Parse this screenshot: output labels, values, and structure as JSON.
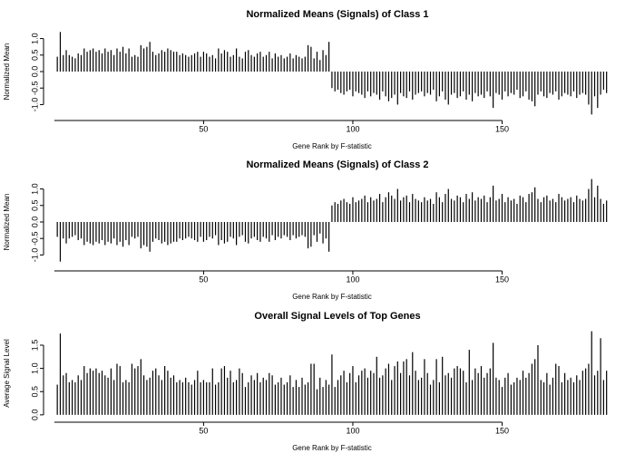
{
  "chart_data": [
    {
      "type": "needle",
      "title": "Normalized Means (Signals) of Class 1",
      "x_label": "Gene Rank by F-statistic",
      "y_label": "Normalized Mean",
      "color": "#000000",
      "xlim": [
        -3,
        193
      ],
      "xticks": [
        50,
        100,
        150
      ],
      "ylim": [
        -1.4,
        1.4
      ],
      "yticks": [
        {
          "value": -1,
          "label": "-1.0"
        },
        {
          "value": -0.5,
          "label": "-0.5"
        },
        {
          "value": 0,
          "label": "0.0"
        },
        {
          "value": 0.5,
          "label": "0.5"
        },
        {
          "value": 1,
          "label": "1.0"
        }
      ],
      "x": [
        1,
        2,
        3,
        4,
        5,
        6,
        7,
        8,
        9,
        10,
        11,
        12,
        13,
        14,
        15,
        16,
        17,
        18,
        19,
        20,
        21,
        22,
        23,
        24,
        25,
        26,
        27,
        28,
        29,
        30,
        31,
        32,
        33,
        34,
        35,
        36,
        37,
        38,
        39,
        40,
        41,
        42,
        43,
        44,
        45,
        46,
        47,
        48,
        49,
        50,
        51,
        52,
        53,
        54,
        55,
        56,
        57,
        58,
        59,
        60,
        61,
        62,
        63,
        64,
        65,
        66,
        67,
        68,
        69,
        70,
        71,
        72,
        73,
        74,
        75,
        76,
        77,
        78,
        79,
        80,
        81,
        82,
        83,
        84,
        85,
        86,
        87,
        88,
        89,
        90,
        91,
        92,
        93,
        94,
        95,
        96,
        97,
        98,
        99,
        100,
        101,
        102,
        103,
        104,
        105,
        106,
        107,
        108,
        109,
        110,
        111,
        112,
        113,
        114,
        115,
        116,
        117,
        118,
        119,
        120,
        121,
        122,
        123,
        124,
        125,
        126,
        127,
        128,
        129,
        130,
        131,
        132,
        133,
        134,
        135,
        136,
        137,
        138,
        139,
        140,
        141,
        142,
        143,
        144,
        145,
        146,
        147,
        148,
        149,
        150,
        151,
        152,
        153,
        154,
        155,
        156,
        157,
        158,
        159,
        160,
        161,
        162,
        163,
        164,
        165,
        166,
        167,
        168,
        169,
        170,
        171,
        172,
        173,
        174,
        175,
        176,
        177,
        178,
        179,
        180,
        181,
        182,
        183,
        184,
        185
      ],
      "values": [
        0.45,
        1.2,
        0.5,
        0.65,
        0.5,
        0.45,
        0.4,
        0.55,
        0.5,
        0.7,
        0.6,
        0.65,
        0.7,
        0.6,
        0.65,
        0.55,
        0.7,
        0.6,
        0.65,
        0.5,
        0.7,
        0.6,
        0.75,
        0.55,
        0.7,
        0.45,
        0.5,
        0.45,
        0.8,
        0.7,
        0.75,
        0.9,
        0.6,
        0.5,
        0.55,
        0.65,
        0.6,
        0.7,
        0.65,
        0.6,
        0.6,
        0.5,
        0.55,
        0.5,
        0.45,
        0.5,
        0.55,
        0.6,
        0.45,
        0.6,
        0.55,
        0.45,
        0.5,
        0.4,
        0.7,
        0.55,
        0.65,
        0.6,
        0.45,
        0.5,
        0.7,
        0.45,
        0.4,
        0.6,
        0.65,
        0.5,
        0.45,
        0.55,
        0.6,
        0.45,
        0.5,
        0.6,
        0.4,
        0.55,
        0.45,
        0.5,
        0.4,
        0.45,
        0.55,
        0.4,
        0.5,
        0.45,
        0.4,
        0.45,
        0.8,
        0.75,
        0.4,
        0.6,
        0.35,
        0.65,
        0.5,
        0.9,
        -0.5,
        -0.6,
        -0.55,
        -0.65,
        -0.7,
        -0.6,
        -0.55,
        -0.75,
        -0.6,
        -0.65,
        -0.7,
        -0.8,
        -0.6,
        -0.75,
        -0.65,
        -0.7,
        -0.85,
        -0.6,
        -0.75,
        -0.9,
        -0.8,
        -0.7,
        -1.0,
        -0.65,
        -0.75,
        -0.8,
        -0.6,
        -0.85,
        -0.7,
        -0.65,
        -0.6,
        -0.75,
        -0.65,
        -0.7,
        -0.55,
        -0.9,
        -0.75,
        -0.6,
        -0.85,
        -1.0,
        -0.7,
        -0.65,
        -0.8,
        -0.75,
        -0.6,
        -0.85,
        -0.7,
        -0.9,
        -0.65,
        -0.75,
        -0.7,
        -0.8,
        -0.6,
        -0.75,
        -1.1,
        -0.65,
        -0.7,
        -0.85,
        -0.6,
        -0.75,
        -0.65,
        -0.7,
        -0.55,
        -0.8,
        -0.75,
        -0.6,
        -0.85,
        -0.9,
        -1.05,
        -0.7,
        -0.6,
        -0.75,
        -0.8,
        -0.65,
        -0.7,
        -0.6,
        -0.85,
        -0.75,
        -0.65,
        -0.7,
        -0.75,
        -0.6,
        -0.8,
        -0.7,
        -0.65,
        -0.7,
        -1.0,
        -1.3,
        -0.75,
        -1.1,
        -0.7,
        -0.55,
        -0.65
      ]
    },
    {
      "type": "needle",
      "title": "Normalized Means (Signals) of Class 2",
      "x_label": "Gene Rank by F-statistic",
      "y_label": "Normalized Mean",
      "color": "#000000",
      "xlim": [
        -3,
        193
      ],
      "xticks": [
        50,
        100,
        150
      ],
      "ylim": [
        -1.4,
        1.4
      ],
      "yticks": [
        {
          "value": -1,
          "label": "-1.0"
        },
        {
          "value": -0.5,
          "label": "-0.5"
        },
        {
          "value": 0,
          "label": "0.0"
        },
        {
          "value": 0.5,
          "label": "0.5"
        },
        {
          "value": 1,
          "label": "1.0"
        }
      ],
      "x": [
        1,
        2,
        3,
        4,
        5,
        6,
        7,
        8,
        9,
        10,
        11,
        12,
        13,
        14,
        15,
        16,
        17,
        18,
        19,
        20,
        21,
        22,
        23,
        24,
        25,
        26,
        27,
        28,
        29,
        30,
        31,
        32,
        33,
        34,
        35,
        36,
        37,
        38,
        39,
        40,
        41,
        42,
        43,
        44,
        45,
        46,
        47,
        48,
        49,
        50,
        51,
        52,
        53,
        54,
        55,
        56,
        57,
        58,
        59,
        60,
        61,
        62,
        63,
        64,
        65,
        66,
        67,
        68,
        69,
        70,
        71,
        72,
        73,
        74,
        75,
        76,
        77,
        78,
        79,
        80,
        81,
        82,
        83,
        84,
        85,
        86,
        87,
        88,
        89,
        90,
        91,
        92,
        93,
        94,
        95,
        96,
        97,
        98,
        99,
        100,
        101,
        102,
        103,
        104,
        105,
        106,
        107,
        108,
        109,
        110,
        111,
        112,
        113,
        114,
        115,
        116,
        117,
        118,
        119,
        120,
        121,
        122,
        123,
        124,
        125,
        126,
        127,
        128,
        129,
        130,
        131,
        132,
        133,
        134,
        135,
        136,
        137,
        138,
        139,
        140,
        141,
        142,
        143,
        144,
        145,
        146,
        147,
        148,
        149,
        150,
        151,
        152,
        153,
        154,
        155,
        156,
        157,
        158,
        159,
        160,
        161,
        162,
        163,
        164,
        165,
        166,
        167,
        168,
        169,
        170,
        171,
        172,
        173,
        174,
        175,
        176,
        177,
        178,
        179,
        180,
        181,
        182,
        183,
        184,
        185
      ],
      "values": [
        -0.45,
        -1.2,
        -0.5,
        -0.65,
        -0.5,
        -0.45,
        -0.4,
        -0.55,
        -0.5,
        -0.7,
        -0.6,
        -0.65,
        -0.7,
        -0.6,
        -0.65,
        -0.55,
        -0.7,
        -0.6,
        -0.65,
        -0.5,
        -0.7,
        -0.6,
        -0.75,
        -0.55,
        -0.7,
        -0.45,
        -0.5,
        -0.45,
        -0.8,
        -0.7,
        -0.75,
        -0.9,
        -0.6,
        -0.5,
        -0.55,
        -0.65,
        -0.6,
        -0.7,
        -0.65,
        -0.6,
        -0.6,
        -0.5,
        -0.55,
        -0.5,
        -0.45,
        -0.5,
        -0.55,
        -0.6,
        -0.45,
        -0.6,
        -0.55,
        -0.45,
        -0.5,
        -0.4,
        -0.7,
        -0.55,
        -0.65,
        -0.6,
        -0.45,
        -0.5,
        -0.7,
        -0.45,
        -0.4,
        -0.6,
        -0.65,
        -0.5,
        -0.45,
        -0.55,
        -0.6,
        -0.45,
        -0.5,
        -0.6,
        -0.4,
        -0.55,
        -0.45,
        -0.5,
        -0.4,
        -0.45,
        -0.55,
        -0.4,
        -0.5,
        -0.45,
        -0.4,
        -0.45,
        -0.8,
        -0.75,
        -0.4,
        -0.6,
        -0.35,
        -0.65,
        -0.5,
        -0.9,
        0.5,
        0.6,
        0.55,
        0.65,
        0.7,
        0.6,
        0.55,
        0.75,
        0.6,
        0.65,
        0.7,
        0.8,
        0.6,
        0.75,
        0.65,
        0.7,
        0.85,
        0.6,
        0.75,
        0.9,
        0.8,
        0.7,
        1.0,
        0.65,
        0.75,
        0.8,
        0.6,
        0.85,
        0.7,
        0.65,
        0.6,
        0.75,
        0.65,
        0.7,
        0.55,
        0.9,
        0.75,
        0.6,
        0.85,
        1.0,
        0.7,
        0.65,
        0.8,
        0.75,
        0.6,
        0.85,
        0.7,
        0.9,
        0.65,
        0.75,
        0.7,
        0.8,
        0.6,
        0.75,
        1.1,
        0.65,
        0.7,
        0.85,
        0.6,
        0.75,
        0.65,
        0.7,
        0.55,
        0.8,
        0.75,
        0.6,
        0.85,
        0.9,
        1.05,
        0.7,
        0.6,
        0.75,
        0.8,
        0.65,
        0.7,
        0.6,
        0.85,
        0.75,
        0.65,
        0.7,
        0.75,
        0.6,
        0.8,
        0.7,
        0.65,
        0.7,
        1.0,
        1.3,
        0.75,
        1.1,
        0.7,
        0.55,
        0.65
      ]
    },
    {
      "type": "needle",
      "title": "Overall Signal Levels of Top Genes",
      "x_label": "Gene Rank by F-statistic",
      "y_label": "Average Signal Level",
      "color": "#000000",
      "xlim": [
        -3,
        193
      ],
      "xticks": [
        50,
        100,
        150
      ],
      "ylim": [
        -0.1,
        1.89
      ],
      "yticks": [
        {
          "value": 0,
          "label": "0.0"
        },
        {
          "value": 0.5,
          "label": "0.5"
        },
        {
          "value": 1,
          "label": "1.0"
        },
        {
          "value": 1.5,
          "label": "1.5"
        }
      ],
      "x": [
        1,
        2,
        3,
        4,
        5,
        6,
        7,
        8,
        9,
        10,
        11,
        12,
        13,
        14,
        15,
        16,
        17,
        18,
        19,
        20,
        21,
        22,
        23,
        24,
        25,
        26,
        27,
        28,
        29,
        30,
        31,
        32,
        33,
        34,
        35,
        36,
        37,
        38,
        39,
        40,
        41,
        42,
        43,
        44,
        45,
        46,
        47,
        48,
        49,
        50,
        51,
        52,
        53,
        54,
        55,
        56,
        57,
        58,
        59,
        60,
        61,
        62,
        63,
        64,
        65,
        66,
        67,
        68,
        69,
        70,
        71,
        72,
        73,
        74,
        75,
        76,
        77,
        78,
        79,
        80,
        81,
        82,
        83,
        84,
        85,
        86,
        87,
        88,
        89,
        90,
        91,
        92,
        93,
        94,
        95,
        96,
        97,
        98,
        99,
        100,
        101,
        102,
        103,
        104,
        105,
        106,
        107,
        108,
        109,
        110,
        111,
        112,
        113,
        114,
        115,
        116,
        117,
        118,
        119,
        120,
        121,
        122,
        123,
        124,
        125,
        126,
        127,
        128,
        129,
        130,
        131,
        132,
        133,
        134,
        135,
        136,
        137,
        138,
        139,
        140,
        141,
        142,
        143,
        144,
        145,
        146,
        147,
        148,
        149,
        150,
        151,
        152,
        153,
        154,
        155,
        156,
        157,
        158,
        159,
        160,
        161,
        162,
        163,
        164,
        165,
        166,
        167,
        168,
        169,
        170,
        171,
        172,
        173,
        174,
        175,
        176,
        177,
        178,
        179,
        180,
        181,
        182,
        183,
        184,
        185
      ],
      "values": [
        0.65,
        1.75,
        0.85,
        0.9,
        0.7,
        0.75,
        0.7,
        0.85,
        0.75,
        1.05,
        0.9,
        1.0,
        0.95,
        1.0,
        0.9,
        0.95,
        0.85,
        0.8,
        1.0,
        0.75,
        1.1,
        1.05,
        0.7,
        0.75,
        0.7,
        1.1,
        1.0,
        1.05,
        1.2,
        0.85,
        0.75,
        0.8,
        0.95,
        1.0,
        0.85,
        0.75,
        1.05,
        0.95,
        0.8,
        0.85,
        0.7,
        0.75,
        0.7,
        0.8,
        0.7,
        0.65,
        0.75,
        0.95,
        0.7,
        0.75,
        0.7,
        0.7,
        1.0,
        0.65,
        0.7,
        1.0,
        1.05,
        0.8,
        0.95,
        0.7,
        0.75,
        1.0,
        0.9,
        0.6,
        0.7,
        0.85,
        0.75,
        0.9,
        0.7,
        0.8,
        0.75,
        0.9,
        0.85,
        0.65,
        0.7,
        0.8,
        0.65,
        0.7,
        0.85,
        0.6,
        0.75,
        0.6,
        0.8,
        0.65,
        0.7,
        1.1,
        1.1,
        0.55,
        0.8,
        0.6,
        0.75,
        0.65,
        1.3,
        0.6,
        0.75,
        0.85,
        0.95,
        0.7,
        0.9,
        1.05,
        0.7,
        0.85,
        0.95,
        1.0,
        0.8,
        0.95,
        0.9,
        1.25,
        0.8,
        0.85,
        1.0,
        1.1,
        0.75,
        1.05,
        1.15,
        0.9,
        1.15,
        1.2,
        0.85,
        1.35,
        0.95,
        0.75,
        0.8,
        1.2,
        0.9,
        0.65,
        0.75,
        1.2,
        0.7,
        1.25,
        0.85,
        0.9,
        0.8,
        1.0,
        1.05,
        1.0,
        0.95,
        0.7,
        1.4,
        0.75,
        1.0,
        0.9,
        1.05,
        0.8,
        0.9,
        1.0,
        1.55,
        0.8,
        0.75,
        0.6,
        0.8,
        0.9,
        0.65,
        0.7,
        0.8,
        0.75,
        0.95,
        0.8,
        0.9,
        1.1,
        1.2,
        1.5,
        0.75,
        0.7,
        0.9,
        0.65,
        0.8,
        1.1,
        1.05,
        0.7,
        0.9,
        0.75,
        0.8,
        0.7,
        0.85,
        0.75,
        0.95,
        1.0,
        1.1,
        1.8,
        0.85,
        0.95,
        1.65,
        0.75,
        0.95
      ]
    }
  ]
}
